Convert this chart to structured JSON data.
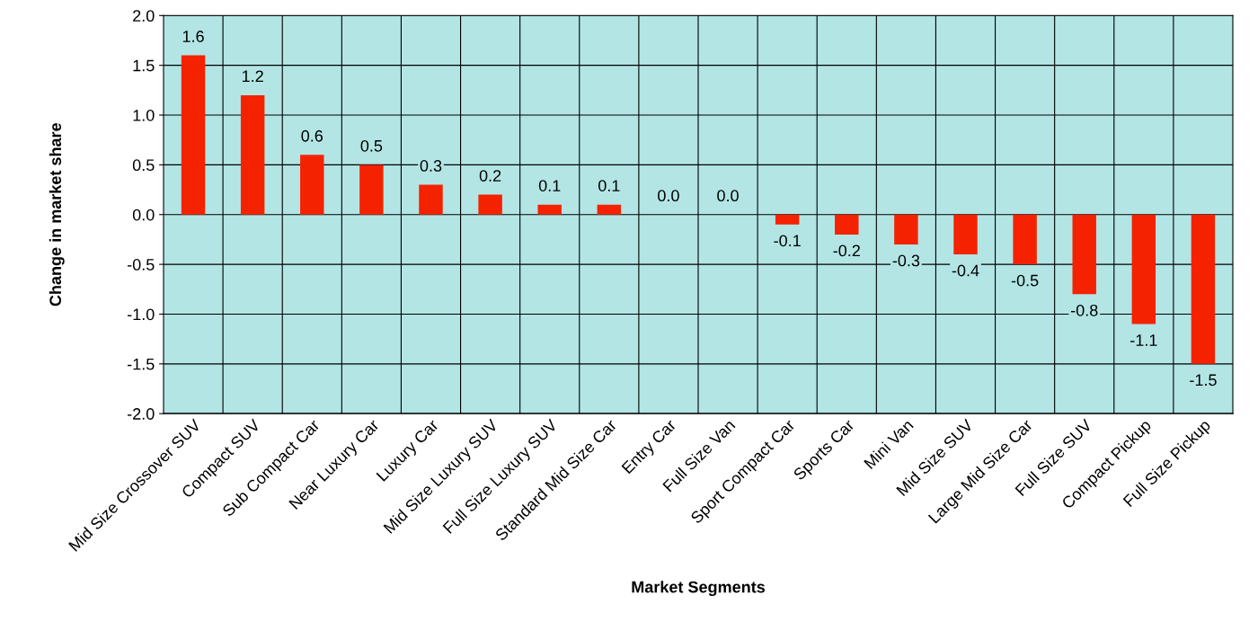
{
  "chart_data": {
    "type": "bar",
    "xlabel": "Market Segments",
    "ylabel": "Change in market share",
    "categories": [
      "Mid Size Crossover SUV",
      "Compact SUV",
      "Sub Compact Car",
      "Near Luxury Car",
      "Luxury Car",
      "Mid Size Luxury SUV",
      "Full Size Luxury SUV",
      "Standard Mid Size Car",
      "Entry Car",
      "Full Size Van",
      "Sport Compact Car",
      "Sports Car",
      "Mini Van",
      "Mid Size SUV",
      "Large Mid Size Car",
      "Full Size SUV",
      "Compact Pickup",
      "Full Size Pickup"
    ],
    "values": [
      1.6,
      1.2,
      0.6,
      0.5,
      0.3,
      0.2,
      0.1,
      0.1,
      0.0,
      0.0,
      -0.1,
      -0.2,
      -0.3,
      -0.4,
      -0.5,
      -0.8,
      -1.1,
      -1.5
    ],
    "value_labels": [
      "1.6",
      "1.2",
      "0.6",
      "0.5",
      "0.3",
      "0.2",
      "0.1",
      "0.1",
      "0.0",
      "0.0",
      "-0.1",
      "-0.2",
      "-0.3",
      "-0.4",
      "-0.5",
      "-0.8",
      "-1.1",
      "-1.5"
    ],
    "color": "#f52200",
    "ylim": [
      -2.0,
      2.0
    ],
    "yticks": [
      {
        "value": -2.0,
        "label": "-2.0"
      },
      {
        "value": -1.5,
        "label": "-1.5"
      },
      {
        "value": -1.0,
        "label": "-1.0"
      },
      {
        "value": -0.5,
        "label": "-0.5"
      },
      {
        "value": 0.0,
        "label": "0.0"
      },
      {
        "value": 0.5,
        "label": "0.5"
      },
      {
        "value": 1.0,
        "label": "1.0"
      },
      {
        "value": 1.5,
        "label": "1.5"
      },
      {
        "value": 2.0,
        "label": "2.0"
      }
    ],
    "grid": true
  }
}
